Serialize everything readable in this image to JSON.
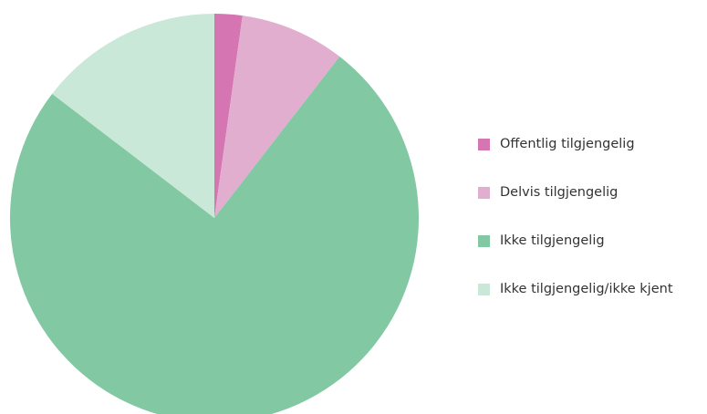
{
  "chart_data": {
    "type": "pie",
    "title": "",
    "slices": [
      {
        "label": "Offentlig tilgjengelig",
        "value": 2.2,
        "color": "#d576b3"
      },
      {
        "label": "Delvis tilgjengelig",
        "value": 8.3,
        "color": "#e2aed0"
      },
      {
        "label": "Ikke tilgjengelig",
        "value": 74.9,
        "color": "#82c8a3"
      },
      {
        "label": "Ikke tilgjengelig/ikke kjent",
        "value": 14.6,
        "color": "#cae8d8"
      }
    ],
    "legend_position": "right"
  }
}
